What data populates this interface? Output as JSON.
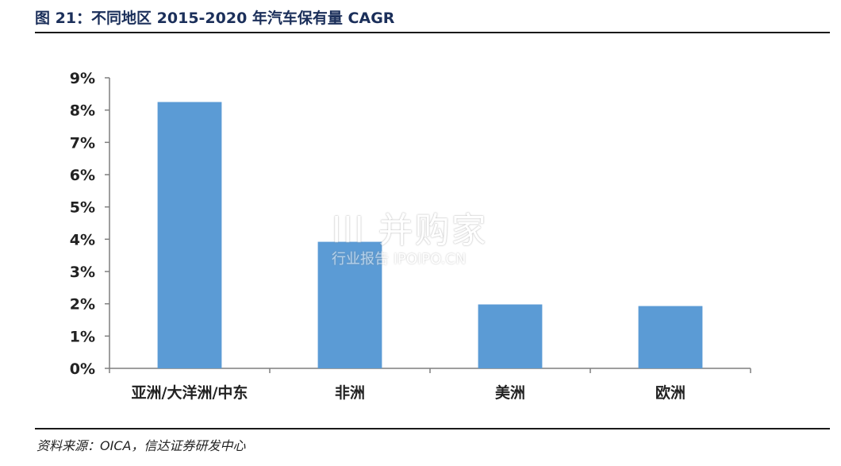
{
  "figure": {
    "title": "图 21：不同地区 2015-2020 年汽车保有量 CAGR",
    "source": "资料来源：OICA，信达证券研发中心"
  },
  "watermark": {
    "main": "lll 并购家",
    "sub": "行业报告 IPOIPO.CN"
  },
  "chart_data": {
    "type": "bar",
    "title": "",
    "xlabel": "",
    "ylabel": "",
    "categories": [
      "亚洲/大洋洲/中东",
      "非洲",
      "美洲",
      "欧洲"
    ],
    "values": [
      8.25,
      3.92,
      1.98,
      1.93
    ],
    "value_unit": "%",
    "ylim": [
      0,
      9
    ],
    "yticks": [
      "0%",
      "1%",
      "2%",
      "3%",
      "4%",
      "5%",
      "6%",
      "7%",
      "8%",
      "9%"
    ],
    "bar_color": "#5b9bd5",
    "grid": false,
    "legend": "none"
  }
}
